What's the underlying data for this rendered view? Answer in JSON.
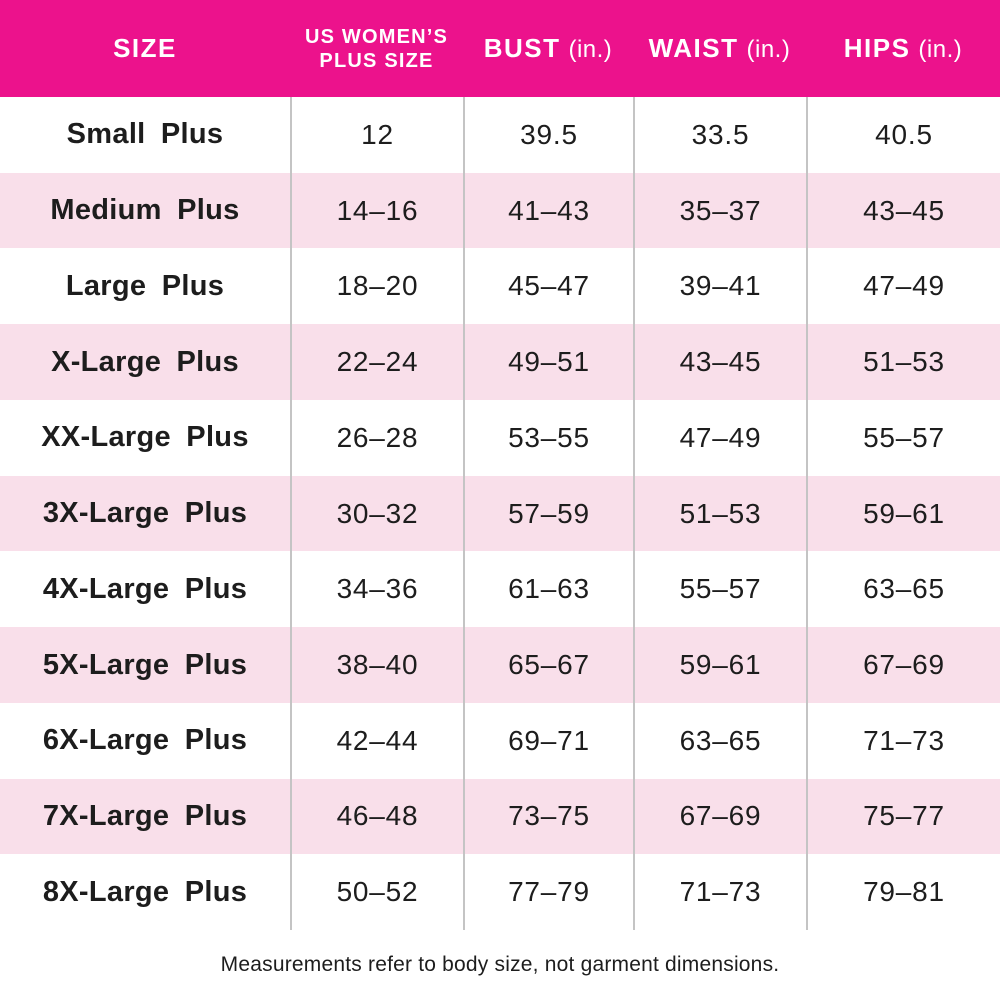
{
  "chart_data": {
    "type": "table",
    "columns": [
      {
        "id": "size",
        "label": "SIZE"
      },
      {
        "id": "plus_size",
        "line1": "US WOMEN’S",
        "line2": "PLUS SIZE"
      },
      {
        "id": "bust",
        "label": "BUST",
        "unit": "(in.)"
      },
      {
        "id": "waist",
        "label": "WAIST",
        "unit": "(in.)"
      },
      {
        "id": "hips",
        "label": "HIPS",
        "unit": "(in.)"
      }
    ],
    "rows": [
      {
        "size": "Small Plus",
        "plus_size": "12",
        "bust": "39.5",
        "waist": "33.5",
        "hips": "40.5"
      },
      {
        "size": "Medium Plus",
        "plus_size": "14–16",
        "bust": "41–43",
        "waist": "35–37",
        "hips": "43–45"
      },
      {
        "size": "Large Plus",
        "plus_size": "18–20",
        "bust": "45–47",
        "waist": "39–41",
        "hips": "47–49"
      },
      {
        "size": "X-Large Plus",
        "plus_size": "22–24",
        "bust": "49–51",
        "waist": "43–45",
        "hips": "51–53"
      },
      {
        "size": "XX-Large Plus",
        "plus_size": "26–28",
        "bust": "53–55",
        "waist": "47–49",
        "hips": "55–57"
      },
      {
        "size": "3X-Large Plus",
        "plus_size": "30–32",
        "bust": "57–59",
        "waist": "51–53",
        "hips": "59–61"
      },
      {
        "size": "4X-Large Plus",
        "plus_size": "34–36",
        "bust": "61–63",
        "waist": "55–57",
        "hips": "63–65"
      },
      {
        "size": "5X-Large Plus",
        "plus_size": "38–40",
        "bust": "65–67",
        "waist": "59–61",
        "hips": "67–69"
      },
      {
        "size": "6X-Large Plus",
        "plus_size": "42–44",
        "bust": "69–71",
        "waist": "63–65",
        "hips": "71–73"
      },
      {
        "size": "7X-Large Plus",
        "plus_size": "46–48",
        "bust": "73–75",
        "waist": "67–69",
        "hips": "75–77"
      },
      {
        "size": "8X-Large Plus",
        "plus_size": "50–52",
        "bust": "77–79",
        "waist": "71–73",
        "hips": "79–81"
      }
    ]
  },
  "footer": {
    "note": "Measurements refer to body size, not garment dimensions."
  },
  "colors": {
    "header_bg": "#EC128C",
    "header_text": "#FFFFFF",
    "row_stripe": "#F9DFEA",
    "divider": "#C4C4C4",
    "text": "#1D1D1D"
  }
}
